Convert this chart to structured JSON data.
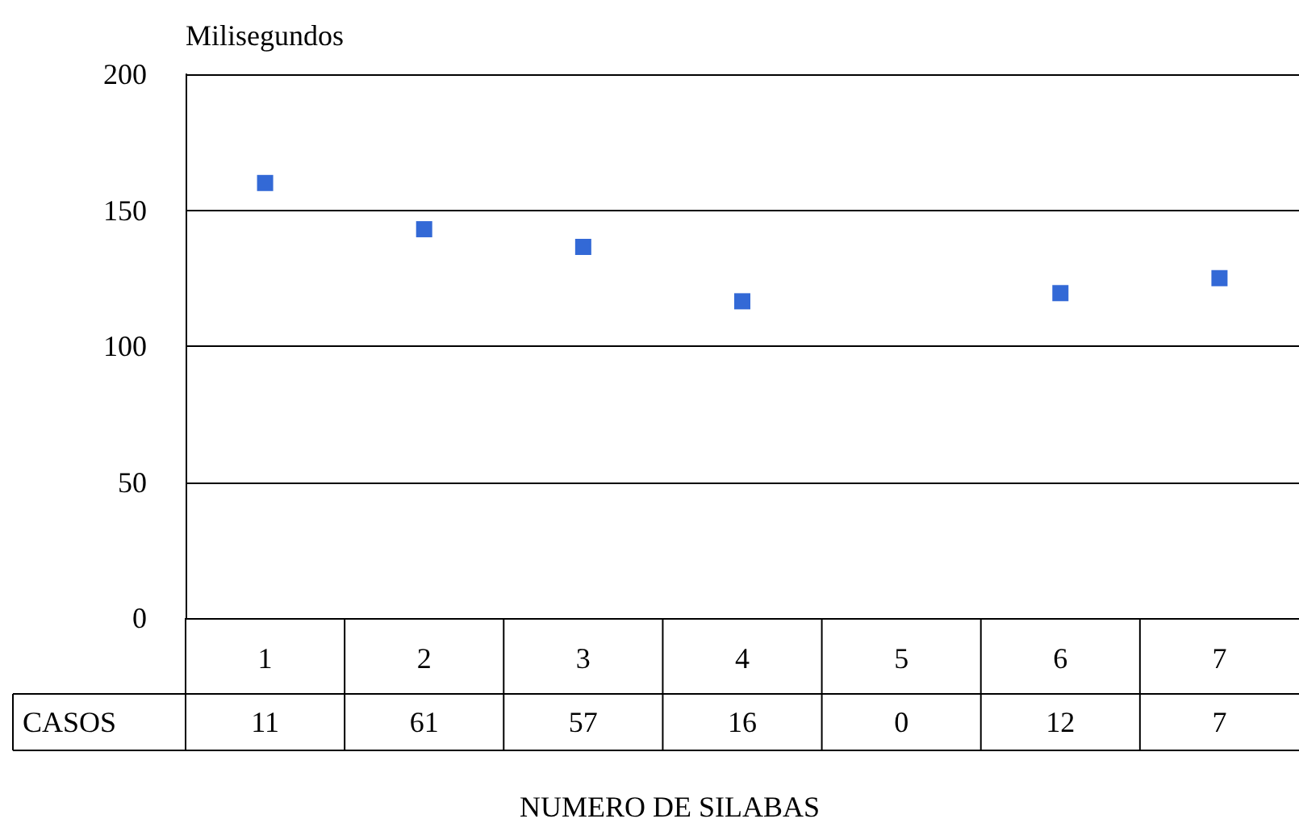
{
  "chart_data": {
    "type": "scatter",
    "ylabel": "Milisegundos",
    "xlabel": "NUMERO DE SILABAS",
    "categories": [
      "1",
      "2",
      "3",
      "4",
      "5",
      "6",
      "7"
    ],
    "series": [
      {
        "color": "#0044cc",
        "values": [
          160,
          143,
          136.5,
          116.5,
          null,
          119.5,
          125
        ]
      }
    ],
    "ylim": [
      0,
      200
    ],
    "yticks": [
      0,
      50,
      100,
      150,
      200
    ],
    "grid": "y",
    "marker": "square",
    "annotations": [
      "CASOS",
      "11",
      "61",
      "57",
      "16",
      "0",
      "12",
      "7"
    ]
  }
}
